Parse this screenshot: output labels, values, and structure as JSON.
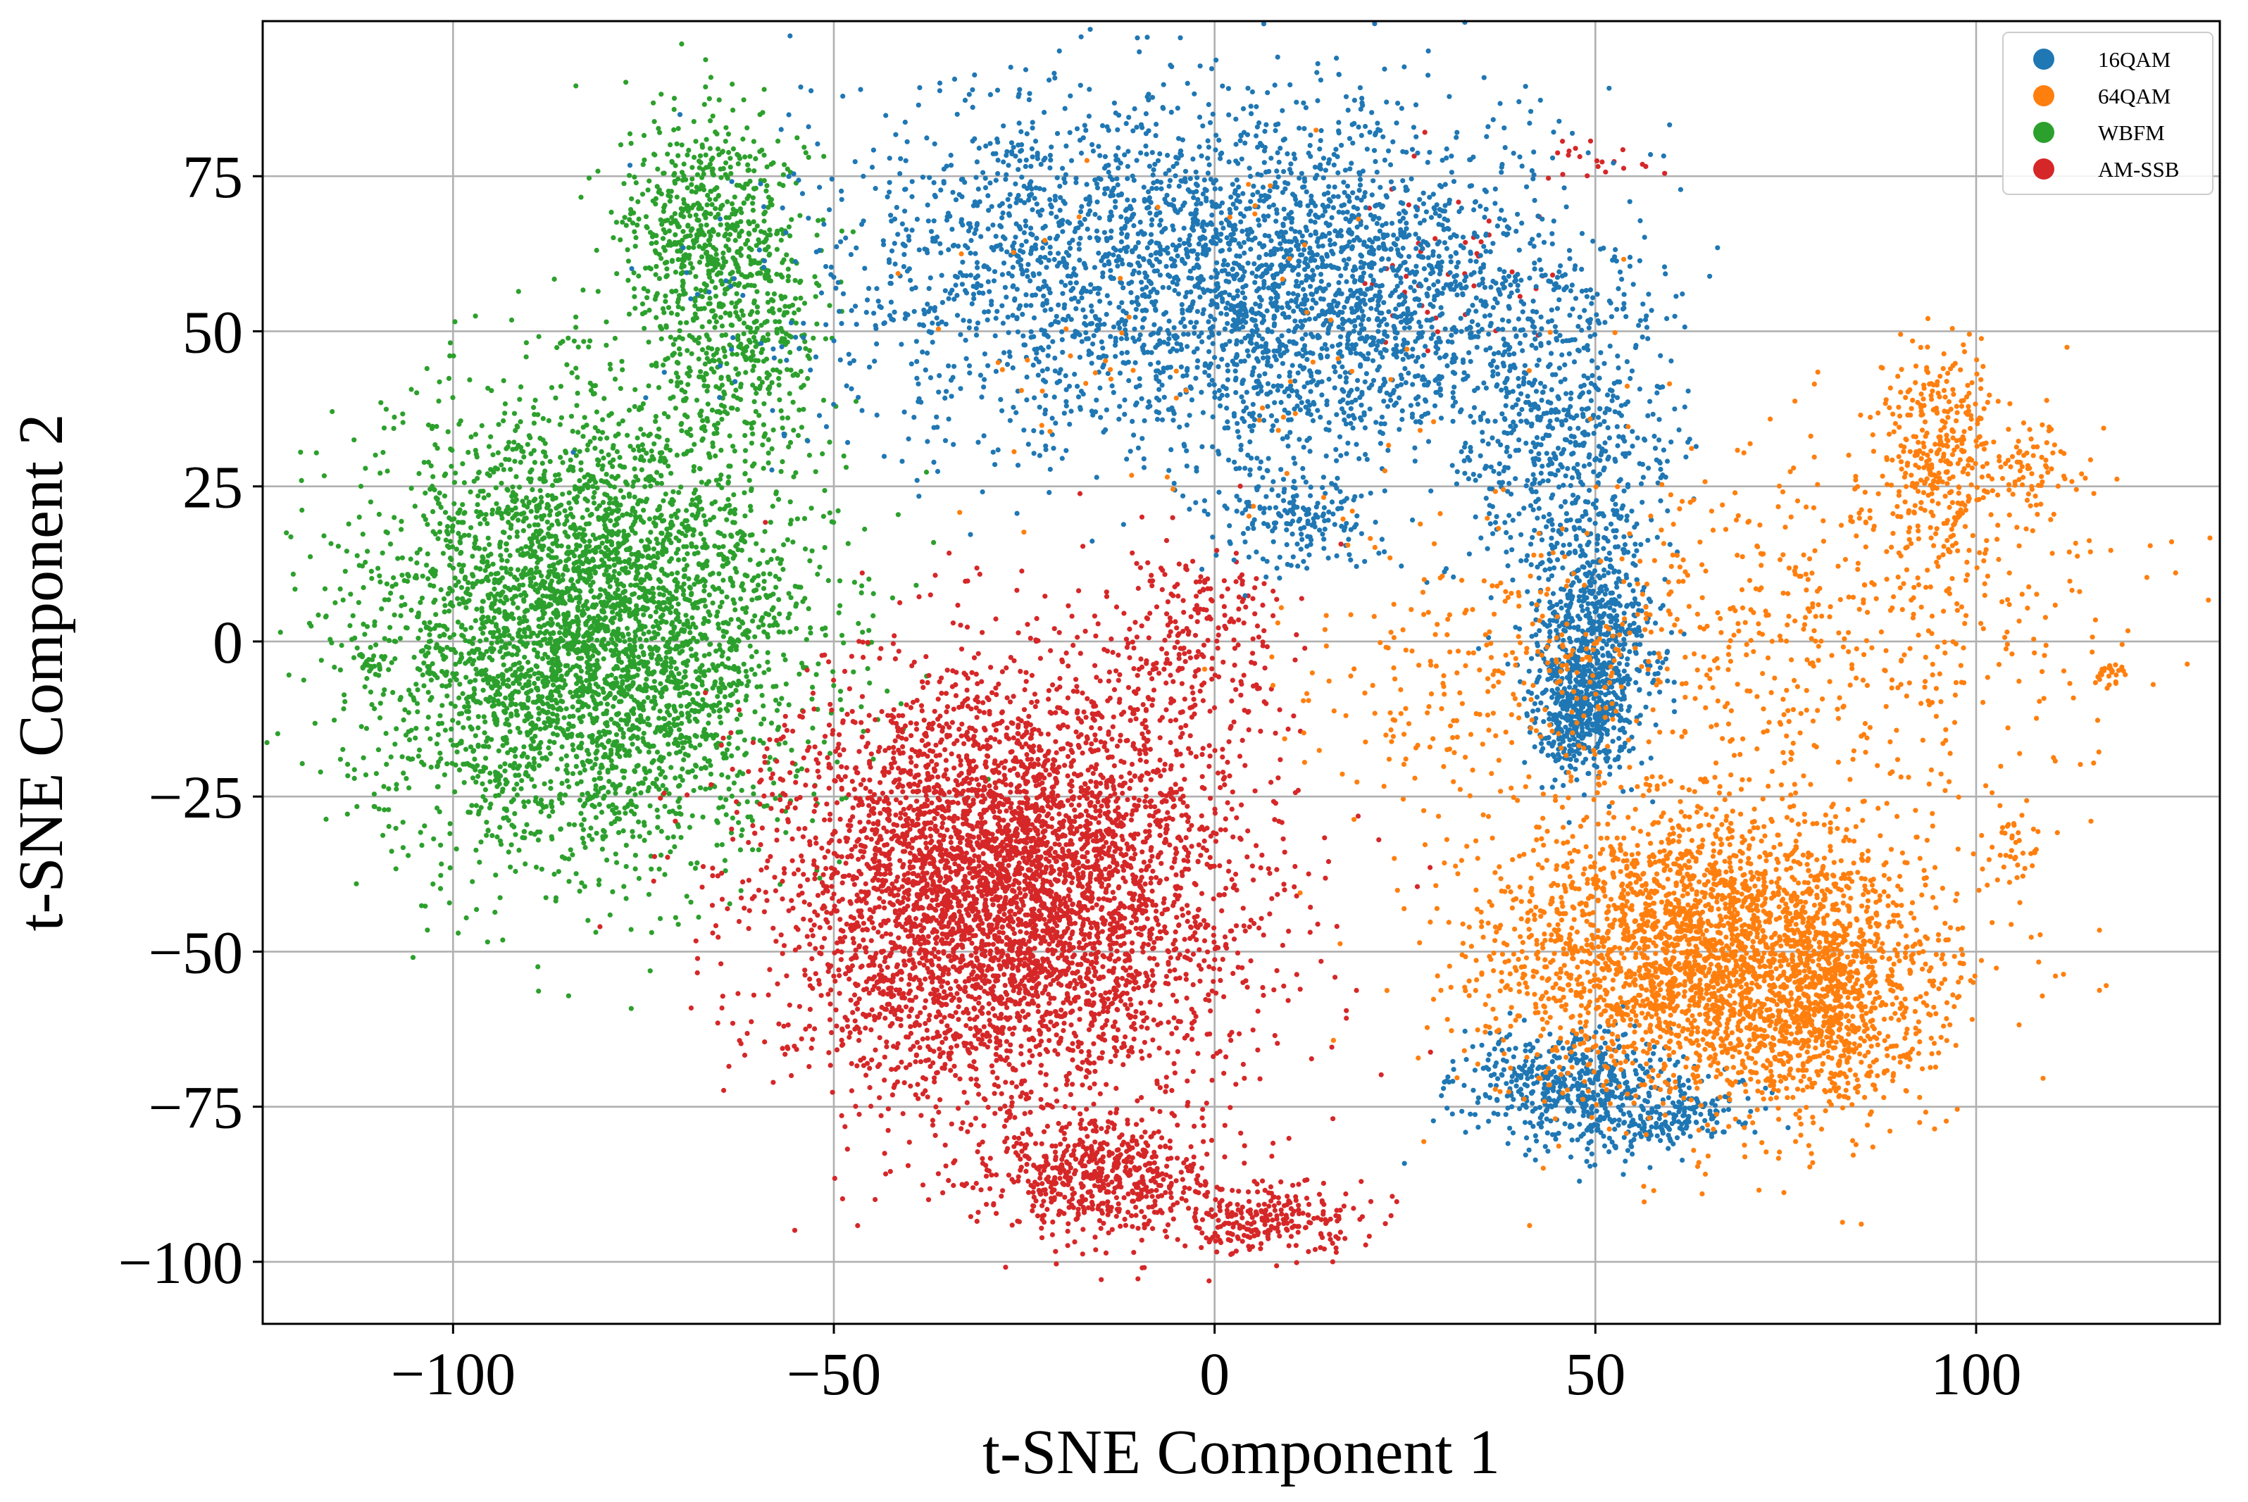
{
  "chart_data": {
    "type": "scatter",
    "title": "",
    "xlabel": "t-SNE Component 1",
    "ylabel": "t-SNE Component 2",
    "xlim": [
      -125,
      132
    ],
    "ylim": [
      -110,
      100
    ],
    "grid": true,
    "legend_position": "top-right",
    "x_ticks": [
      -100,
      -50,
      0,
      50,
      100
    ],
    "y_ticks": [
      -100,
      -75,
      -50,
      -25,
      0,
      25,
      50,
      75
    ],
    "x_tick_labels": [
      "−100",
      "−50",
      "0",
      "50",
      "100"
    ],
    "y_tick_labels": [
      "−100",
      "−75",
      "−50",
      "−25",
      "0",
      "25",
      "50",
      "75"
    ],
    "series": [
      {
        "name": "16QAM",
        "color": "#1f77b4",
        "clusters": [
          {
            "cx": -10,
            "cy": 60,
            "sx": 22,
            "sy": 14,
            "n": 2200
          },
          {
            "cx": 18,
            "cy": 55,
            "sx": 14,
            "sy": 14,
            "n": 1300
          },
          {
            "cx": 46,
            "cy": 32,
            "sx": 7,
            "sy": 14,
            "n": 650
          },
          {
            "cx": 50,
            "cy": 0,
            "sx": 4,
            "sy": 9,
            "n": 650
          },
          {
            "cx": 48,
            "cy": -12,
            "sx": 3,
            "sy": 5,
            "n": 350
          },
          {
            "cx": 46,
            "cy": -72,
            "sx": 7,
            "sy": 5,
            "n": 500
          },
          {
            "cx": 60,
            "cy": -76,
            "sx": 6,
            "sy": 3,
            "n": 200
          },
          {
            "cx": 10,
            "cy": 20,
            "sx": 6,
            "sy": 4,
            "n": 180
          }
        ]
      },
      {
        "name": "64QAM",
        "color": "#ff7f0e",
        "clusters": [
          {
            "cx": 65,
            "cy": -50,
            "sx": 14,
            "sy": 12,
            "n": 2800
          },
          {
            "cx": 80,
            "cy": -58,
            "sx": 7,
            "sy": 9,
            "n": 700
          },
          {
            "cx": 95,
            "cy": 30,
            "sx": 4,
            "sy": 9,
            "n": 350
          },
          {
            "cx": 85,
            "cy": 5,
            "sx": 18,
            "sy": 14,
            "n": 500
          },
          {
            "cx": 40,
            "cy": -5,
            "sx": 15,
            "sy": 12,
            "n": 350
          },
          {
            "cx": 108,
            "cy": 28,
            "sx": 3,
            "sy": 4,
            "n": 70
          },
          {
            "cx": 105,
            "cy": -33,
            "sx": 2,
            "sy": 4,
            "n": 40
          },
          {
            "cx": 118,
            "cy": -5,
            "sx": 1,
            "sy": 1,
            "n": 25
          },
          {
            "cx": 0,
            "cy": 45,
            "sx": 20,
            "sy": 15,
            "n": 70
          }
        ]
      },
      {
        "name": "WBFM",
        "color": "#2ca02c",
        "clusters": [
          {
            "cx": -82,
            "cy": 2,
            "sx": 14,
            "sy": 18,
            "n": 4200
          },
          {
            "cx": -66,
            "cy": 65,
            "sx": 6,
            "sy": 10,
            "n": 700
          },
          {
            "cx": -62,
            "cy": 45,
            "sx": 5,
            "sy": 9,
            "n": 300
          },
          {
            "cx": -111,
            "cy": -3,
            "sx": 1,
            "sy": 1,
            "n": 25
          }
        ]
      },
      {
        "name": "AM-SSB",
        "color": "#d62728",
        "clusters": [
          {
            "cx": -28,
            "cy": -40,
            "sx": 15,
            "sy": 17,
            "n": 5000
          },
          {
            "cx": -15,
            "cy": -87,
            "sx": 8,
            "sy": 5,
            "n": 600
          },
          {
            "cx": 8,
            "cy": -93,
            "sx": 6,
            "sy": 3,
            "n": 250
          },
          {
            "cx": -3,
            "cy": 0,
            "sx": 6,
            "sy": 8,
            "n": 250
          },
          {
            "cx": 30,
            "cy": 60,
            "sx": 6,
            "sy": 10,
            "n": 45
          },
          {
            "cx": 50,
            "cy": 78,
            "sx": 5,
            "sy": 2,
            "n": 20
          }
        ]
      }
    ]
  }
}
